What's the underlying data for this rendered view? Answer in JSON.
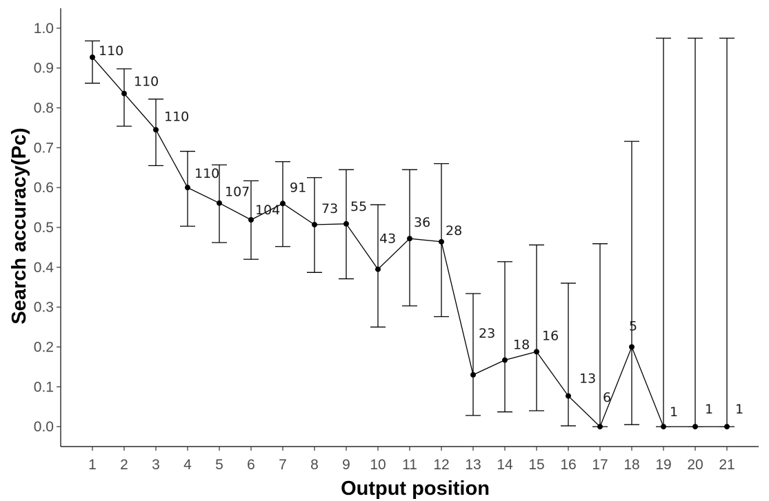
{
  "chart_data": {
    "type": "line",
    "title": "",
    "xlabel": "Output position",
    "ylabel": "Search accuracy(Pc)",
    "x": [
      1,
      2,
      3,
      4,
      5,
      6,
      7,
      8,
      9,
      10,
      11,
      12,
      13,
      14,
      15,
      16,
      17,
      18,
      19,
      20,
      21
    ],
    "x_tick_labels": [
      "1",
      "2",
      "3",
      "4",
      "5",
      "6",
      "7",
      "8",
      "9",
      "10",
      "11",
      "12",
      "13",
      "14",
      "15",
      "16",
      "17",
      "18",
      "19",
      "20",
      "21"
    ],
    "y_ticks": [
      0.0,
      0.1,
      0.2,
      0.3,
      0.4,
      0.5,
      0.6,
      0.7,
      0.8,
      0.9,
      1.0
    ],
    "y_tick_labels": [
      "0.0",
      "0.1",
      "0.2",
      "0.3",
      "0.4",
      "0.5",
      "0.6",
      "0.7",
      "0.8",
      "0.9",
      "1.0"
    ],
    "ylim": [
      -0.05,
      1.05
    ],
    "xlim": [
      0.0,
      22.0
    ],
    "grid": false,
    "series": [
      {
        "values": [
          0.927,
          0.836,
          0.745,
          0.6,
          0.561,
          0.519,
          0.56,
          0.507,
          0.509,
          0.395,
          0.472,
          0.464,
          0.13,
          0.167,
          0.188,
          0.077,
          0.0,
          0.2,
          0.0,
          0.0,
          0.0
        ],
        "error_low": [
          0.862,
          0.754,
          0.655,
          0.503,
          0.462,
          0.42,
          0.452,
          0.387,
          0.371,
          0.25,
          0.303,
          0.276,
          0.028,
          0.037,
          0.04,
          0.002,
          0.0,
          0.005,
          0.0,
          0.0,
          0.0
        ],
        "error_high": [
          0.968,
          0.898,
          0.822,
          0.691,
          0.657,
          0.617,
          0.665,
          0.625,
          0.645,
          0.557,
          0.645,
          0.66,
          0.334,
          0.414,
          0.456,
          0.36,
          0.459,
          0.716,
          0.975,
          0.975,
          0.975
        ],
        "n_labels": [
          "110",
          "110",
          "110",
          "110",
          "107",
          "104",
          "91",
          "73",
          "55",
          "43",
          "36",
          "28",
          "23",
          "18",
          "16",
          "13",
          "6",
          "5",
          "1",
          "1",
          "1"
        ]
      }
    ],
    "colors": {
      "line": "#000000",
      "axis": "#000000",
      "tick_text": "#4d4d4d"
    }
  }
}
